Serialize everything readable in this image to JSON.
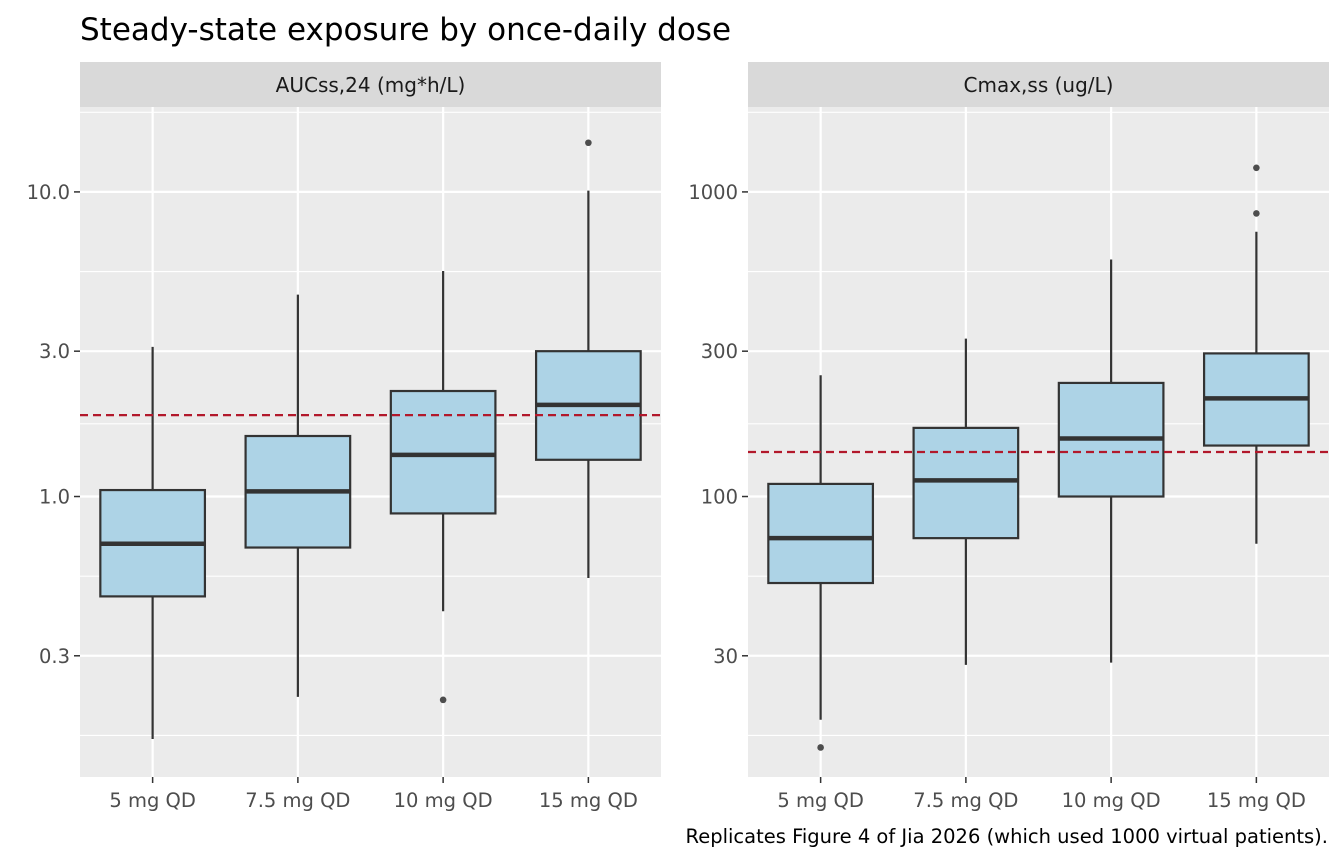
{
  "title": "Steady-state exposure by once-daily dose",
  "caption": "Replicates Figure 4 of Jia 2026 (which used 1000 virtual patients).",
  "colors": {
    "panel_bg": "#ebebeb",
    "strip_bg": "#d9d9d9",
    "grid": "#ffffff",
    "box_fill": "#add3e6",
    "box_line": "#333333",
    "outlier": "#4d4d4d",
    "reference_line": "#b2182b"
  },
  "chart_data": [
    {
      "type": "boxplot",
      "facet": "AUCss,24 (mg*h/L)",
      "scale": "log10",
      "categories": [
        "5 mg QD",
        "7.5 mg QD",
        "10 mg QD",
        "15 mg QD"
      ],
      "y_ticks": [
        0.3,
        1.0,
        3.0,
        10.0
      ],
      "y_tick_labels": [
        "0.3",
        "1.0",
        "3.0",
        "10.0"
      ],
      "ylim": [
        0.12,
        19
      ],
      "reference_line": 1.85,
      "boxes": [
        {
          "lower_whisker": 0.16,
          "q1": 0.47,
          "median": 0.7,
          "q3": 1.05,
          "upper_whisker": 3.1,
          "outliers": []
        },
        {
          "lower_whisker": 0.22,
          "q1": 0.68,
          "median": 1.04,
          "q3": 1.58,
          "upper_whisker": 4.6,
          "outliers": []
        },
        {
          "lower_whisker": 0.42,
          "q1": 0.88,
          "median": 1.37,
          "q3": 2.22,
          "upper_whisker": 5.5,
          "outliers": [
            0.215
          ]
        },
        {
          "lower_whisker": 0.54,
          "q1": 1.32,
          "median": 2.0,
          "q3": 3.0,
          "upper_whisker": 10.1,
          "outliers": [
            14.5
          ]
        }
      ]
    },
    {
      "type": "boxplot",
      "facet": "Cmax,ss (ug/L)",
      "scale": "log10",
      "categories": [
        "5 mg QD",
        "7.5 mg QD",
        "10 mg QD",
        "15 mg QD"
      ],
      "y_ticks": [
        30,
        100,
        300,
        1000
      ],
      "y_tick_labels": [
        "30",
        "100",
        "300",
        "1000"
      ],
      "ylim": [
        12,
        1900
      ],
      "reference_line": 140,
      "boxes": [
        {
          "lower_whisker": 18.5,
          "q1": 52,
          "median": 73,
          "q3": 110,
          "upper_whisker": 250,
          "outliers": [
            15
          ]
        },
        {
          "lower_whisker": 28,
          "q1": 73,
          "median": 113,
          "q3": 168,
          "upper_whisker": 330,
          "outliers": []
        },
        {
          "lower_whisker": 28.5,
          "q1": 100,
          "median": 155,
          "q3": 236,
          "upper_whisker": 600,
          "outliers": []
        },
        {
          "lower_whisker": 70,
          "q1": 147,
          "median": 210,
          "q3": 295,
          "upper_whisker": 740,
          "outliers": [
            1200,
            850
          ]
        }
      ]
    }
  ]
}
